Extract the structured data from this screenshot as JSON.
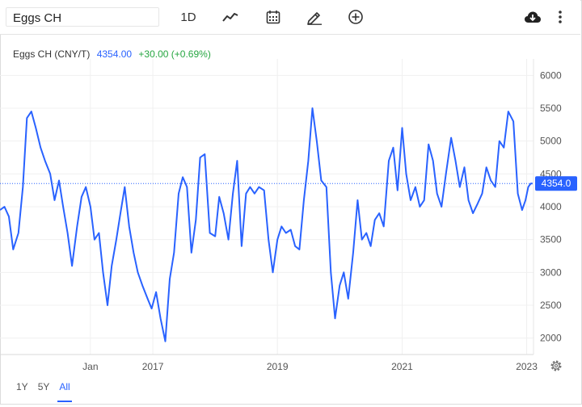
{
  "toolbar": {
    "symbol": "Eggs CH",
    "interval_label": "1D",
    "icons": [
      "line-chart-icon",
      "calendar-icon",
      "pencil-icon",
      "plus-circle-icon",
      "cloud-download-icon",
      "more-vertical-icon"
    ]
  },
  "legend": {
    "name": "Eggs CH (CNY/T)",
    "price": "4354.00",
    "change": "+30.00 (+0.69%)",
    "price_color": "#2962ff",
    "change_color": "#26a641"
  },
  "range_buttons": [
    {
      "label": "1Y",
      "active": false
    },
    {
      "label": "5Y",
      "active": false
    },
    {
      "label": "All",
      "active": true
    }
  ],
  "colors": {
    "line": "#2962ff",
    "axis_text": "#555555",
    "grid": "#f0f0f0",
    "current_label_bg": "#2962ff"
  },
  "chart_data": {
    "type": "line",
    "title": "",
    "xlabel": "",
    "ylabel": "",
    "x_ticks": [
      "Jan",
      "2017",
      "2019",
      "2021",
      "2023"
    ],
    "y_ticks": [
      2000,
      2500,
      3000,
      3500,
      4000,
      4500,
      5000,
      5500,
      6000
    ],
    "ylim": [
      1750,
      6250
    ],
    "xlim": [
      "2014-07-20",
      "2023-02-10"
    ],
    "current_value": 4354.0,
    "current_value_label": "4354.0",
    "grid": true,
    "series": [
      {
        "x": [
          "2014-07-20",
          "2014-08-15",
          "2014-09-10",
          "2014-10-05",
          "2014-11-05",
          "2014-12-01",
          "2014-12-25",
          "2015-01-20",
          "2015-02-15",
          "2015-03-15",
          "2015-04-10",
          "2015-05-10",
          "2015-06-05",
          "2015-07-01",
          "2015-07-25",
          "2015-08-20",
          "2015-09-15",
          "2015-10-15",
          "2015-11-10",
          "2015-12-05",
          "2016-01-01",
          "2016-01-25",
          "2016-02-20",
          "2016-03-15",
          "2016-04-10",
          "2016-05-05",
          "2016-06-01",
          "2016-06-25",
          "2016-07-20",
          "2016-08-15",
          "2016-09-10",
          "2016-10-05",
          "2016-11-01",
          "2016-12-01",
          "2016-12-25",
          "2017-01-20",
          "2017-02-15",
          "2017-03-15",
          "2017-04-10",
          "2017-05-05",
          "2017-06-01",
          "2017-06-25",
          "2017-07-20",
          "2017-08-15",
          "2017-09-10",
          "2017-10-05",
          "2017-11-01",
          "2017-12-01",
          "2018-01-01",
          "2018-01-25",
          "2018-02-20",
          "2018-03-20",
          "2018-04-15",
          "2018-05-10",
          "2018-06-05",
          "2018-07-01",
          "2018-07-25",
          "2018-08-20",
          "2018-09-15",
          "2018-10-15",
          "2018-11-10",
          "2018-12-05",
          "2019-01-01",
          "2019-01-25",
          "2019-02-20",
          "2019-03-20",
          "2019-04-15",
          "2019-05-10",
          "2019-06-05",
          "2019-07-01",
          "2019-07-25",
          "2019-08-20",
          "2019-09-15",
          "2019-10-15",
          "2019-11-10",
          "2019-12-05",
          "2020-01-01",
          "2020-01-25",
          "2020-02-20",
          "2020-03-20",
          "2020-04-15",
          "2020-05-10",
          "2020-06-05",
          "2020-07-01",
          "2020-07-25",
          "2020-08-20",
          "2020-09-15",
          "2020-10-15",
          "2020-11-10",
          "2020-12-05",
          "2021-01-01",
          "2021-01-25",
          "2021-02-20",
          "2021-03-20",
          "2021-04-15",
          "2021-05-10",
          "2021-06-05",
          "2021-07-01",
          "2021-07-25",
          "2021-08-20",
          "2021-09-15",
          "2021-10-15",
          "2021-11-10",
          "2021-12-05",
          "2022-01-01",
          "2022-01-25",
          "2022-02-20",
          "2022-03-20",
          "2022-04-15",
          "2022-05-10",
          "2022-06-05",
          "2022-07-01",
          "2022-07-25",
          "2022-08-20",
          "2022-09-15",
          "2022-10-15",
          "2022-11-10",
          "2022-12-05",
          "2022-12-25",
          "2023-01-10",
          "2023-01-25",
          "2023-02-05"
        ],
        "values": [
          3950,
          4000,
          3850,
          3350,
          3600,
          4300,
          5350,
          5450,
          5200,
          4900,
          4700,
          4500,
          4100,
          4400,
          4000,
          3600,
          3100,
          3700,
          4150,
          4300,
          4000,
          3500,
          3600,
          3000,
          2500,
          3100,
          3500,
          3900,
          4300,
          3700,
          3300,
          3000,
          2800,
          2600,
          2450,
          2700,
          2300,
          1950,
          2900,
          3300,
          4200,
          4450,
          4300,
          3300,
          3800,
          4750,
          4800,
          3600,
          3550,
          4150,
          3900,
          3500,
          4200,
          4700,
          3400,
          4200,
          4300,
          4200,
          4300,
          4250,
          3500,
          3000,
          3500,
          3700,
          3600,
          3650,
          3400,
          3350,
          4100,
          4700,
          5500,
          5000,
          4400,
          4300,
          3000,
          2300,
          2800,
          3000,
          2600,
          3300,
          4100,
          3500,
          3600,
          3400,
          3800,
          3900,
          3700,
          4700,
          4900,
          4250,
          5200,
          4500,
          4100,
          4300,
          4000,
          4100,
          4950,
          4700,
          4200,
          4000,
          4500,
          5050,
          4700,
          4300,
          4600,
          4100,
          3900,
          4050,
          4200,
          4600,
          4400,
          4300,
          5000,
          4900,
          5450,
          5300,
          4200,
          3950,
          4100,
          4300,
          4354,
          4354
        ]
      }
    ]
  }
}
